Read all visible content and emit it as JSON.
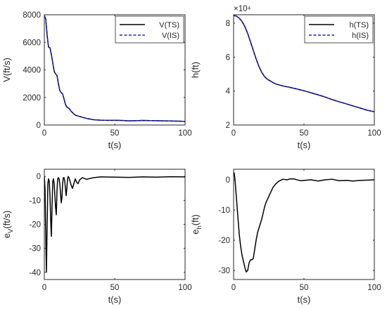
{
  "chart_data": [
    {
      "type": "line",
      "xlabel": "t(s)",
      "ylabel": "V(ft/s)",
      "xlim": [
        0,
        100
      ],
      "ylim": [
        0,
        8000
      ],
      "xticks": [
        "0",
        "50",
        "100"
      ],
      "yticks": [
        "0",
        "2000",
        "4000",
        "6000",
        "8000"
      ],
      "legend": "top-right",
      "series": [
        {
          "name": "V(TS)",
          "color": "#000000",
          "style": "solid",
          "x": [
            0,
            1,
            2,
            3,
            4,
            5,
            6,
            7,
            8,
            9,
            10,
            11,
            12,
            13,
            14,
            15,
            16,
            17,
            18,
            19,
            20,
            21,
            22,
            23,
            25,
            27,
            30,
            35,
            40,
            45,
            50,
            55,
            60,
            65,
            70,
            75,
            80,
            85,
            90,
            95,
            100
          ],
          "values": [
            7950,
            7700,
            6500,
            5650,
            5600,
            5100,
            4500,
            3900,
            3700,
            3600,
            3000,
            2500,
            2350,
            2250,
            1900,
            1500,
            1300,
            1250,
            1150,
            1000,
            900,
            800,
            720,
            680,
            620,
            560,
            480,
            380,
            350,
            340,
            345,
            330,
            300,
            310,
            330,
            320,
            310,
            300,
            290,
            280,
            260
          ]
        },
        {
          "name": "V(IS)",
          "color": "#1f1fd6",
          "style": "dashed",
          "x": [
            0,
            1,
            2,
            3,
            4,
            5,
            6,
            7,
            8,
            9,
            10,
            11,
            12,
            13,
            14,
            15,
            16,
            17,
            18,
            19,
            20,
            21,
            22,
            23,
            25,
            27,
            30,
            35,
            40,
            45,
            50,
            55,
            60,
            65,
            70,
            75,
            80,
            85,
            90,
            95,
            100
          ],
          "values": [
            7950,
            7700,
            6500,
            5650,
            5600,
            5100,
            4500,
            3900,
            3700,
            3600,
            3000,
            2500,
            2350,
            2250,
            1900,
            1500,
            1300,
            1250,
            1150,
            1000,
            900,
            800,
            720,
            680,
            620,
            560,
            480,
            380,
            350,
            340,
            345,
            330,
            300,
            310,
            330,
            320,
            310,
            300,
            290,
            280,
            260
          ]
        }
      ]
    },
    {
      "type": "line",
      "xlabel": "t(s)",
      "ylabel": "h(ft)",
      "multiplier": "×10⁴",
      "xlim": [
        0,
        100
      ],
      "ylim": [
        2,
        8.5
      ],
      "xticks": [
        "0",
        "50",
        "100"
      ],
      "yticks": [
        "2",
        "4",
        "6",
        "8"
      ],
      "legend": "top-right",
      "series": [
        {
          "name": "h(TS)",
          "color": "#000000",
          "style": "solid",
          "x": [
            0,
            2,
            4,
            6,
            8,
            10,
            12,
            14,
            16,
            18,
            20,
            22,
            24,
            26,
            28,
            30,
            35,
            40,
            45,
            50,
            55,
            60,
            65,
            70,
            75,
            80,
            85,
            90,
            95,
            100
          ],
          "values": [
            8.45,
            8.42,
            8.3,
            8.1,
            7.8,
            7.4,
            6.9,
            6.4,
            5.9,
            5.45,
            5.1,
            4.85,
            4.7,
            4.6,
            4.5,
            4.42,
            4.3,
            4.22,
            4.12,
            4.02,
            3.9,
            3.78,
            3.65,
            3.5,
            3.37,
            3.25,
            3.12,
            3.0,
            2.87,
            2.78
          ]
        },
        {
          "name": "h(IS)",
          "color": "#1f1fd6",
          "style": "dashed",
          "x": [
            0,
            2,
            4,
            6,
            8,
            10,
            12,
            14,
            16,
            18,
            20,
            22,
            24,
            26,
            28,
            30,
            35,
            40,
            45,
            50,
            55,
            60,
            65,
            70,
            75,
            80,
            85,
            90,
            95,
            100
          ],
          "values": [
            8.45,
            8.42,
            8.3,
            8.1,
            7.8,
            7.4,
            6.9,
            6.4,
            5.9,
            5.45,
            5.1,
            4.85,
            4.7,
            4.6,
            4.5,
            4.42,
            4.3,
            4.22,
            4.12,
            4.02,
            3.9,
            3.78,
            3.65,
            3.5,
            3.37,
            3.25,
            3.12,
            3.0,
            2.87,
            2.78
          ]
        }
      ]
    },
    {
      "type": "line",
      "xlabel": "t(s)",
      "ylabel": "e_V(ft/s)",
      "xlim": [
        0,
        100
      ],
      "ylim": [
        -43,
        3
      ],
      "xticks": [
        "0",
        "50",
        "100"
      ],
      "yticks": [
        "-40",
        "-30",
        "-20",
        "-10",
        "0"
      ],
      "legend": "none",
      "series": [
        {
          "color": "#000000",
          "style": "solid",
          "x": [
            0,
            0.5,
            1,
            1.5,
            2,
            2.5,
            3,
            3.5,
            4,
            4.5,
            5,
            5.5,
            6,
            6.5,
            7,
            7.5,
            8,
            8.5,
            9,
            9.5,
            10,
            10.5,
            11,
            11.5,
            12,
            12.5,
            13,
            13.5,
            14,
            14.5,
            15,
            15.5,
            16,
            16.5,
            17,
            17.5,
            18,
            19,
            20,
            21,
            22,
            23,
            24,
            25,
            27,
            30,
            35,
            40,
            50,
            60,
            70,
            80,
            90,
            100
          ],
          "values": [
            0,
            -5,
            -25,
            -40,
            -20,
            -3,
            -1,
            -2,
            -8,
            -18,
            -25,
            -12,
            -2,
            -1,
            -3,
            -8,
            -13,
            -16,
            -6,
            -1,
            -0.5,
            -1,
            -3,
            -7,
            -11,
            -9,
            -3,
            -0.5,
            -0.5,
            -2,
            -5,
            -8,
            -5,
            -1,
            0,
            -0.5,
            -1.5,
            -3.5,
            -5,
            -3,
            -1,
            -2.5,
            -3,
            -1.5,
            -0.5,
            -1.2,
            -0.5,
            -0.2,
            -0.3,
            -0.4,
            -0.2,
            -0.3,
            -0.1,
            -0.2
          ]
        }
      ]
    },
    {
      "type": "line",
      "xlabel": "t(s)",
      "ylabel": "e_h(ft)",
      "xlim": [
        0,
        100
      ],
      "ylim": [
        -33,
        3.5
      ],
      "xticks": [
        "0",
        "50",
        "100"
      ],
      "yticks": [
        "-30",
        "-20",
        "-10",
        "0"
      ],
      "legend": "none",
      "series": [
        {
          "color": "#000000",
          "style": "solid",
          "x": [
            0,
            0.5,
            1,
            1.5,
            2,
            3,
            4,
            5,
            6,
            7,
            8,
            9,
            10,
            11,
            12,
            13,
            14,
            15,
            16,
            17,
            18,
            19,
            20,
            21,
            22,
            23,
            24,
            25,
            26,
            27,
            28,
            30,
            32,
            35,
            38,
            40,
            43,
            45,
            48,
            50,
            55,
            60,
            65,
            70,
            75,
            80,
            85,
            90,
            95,
            100
          ],
          "values": [
            2.5,
            2,
            0,
            -3,
            -6,
            -12,
            -18,
            -22,
            -25,
            -27,
            -29,
            -30.5,
            -30,
            -27.5,
            -26.5,
            -26.5,
            -26,
            -23,
            -20,
            -17.5,
            -16,
            -14.5,
            -13,
            -11,
            -9,
            -7.5,
            -6.5,
            -5.5,
            -4.5,
            -3.5,
            -2.5,
            -1.3,
            -0.5,
            0.2,
            0,
            0.3,
            0.3,
            0,
            -0.3,
            -0.2,
            0,
            -0.4,
            0,
            0.2,
            -0.3,
            -0.2,
            -0.4,
            -0.2,
            -0.1,
            0
          ]
        }
      ]
    }
  ]
}
